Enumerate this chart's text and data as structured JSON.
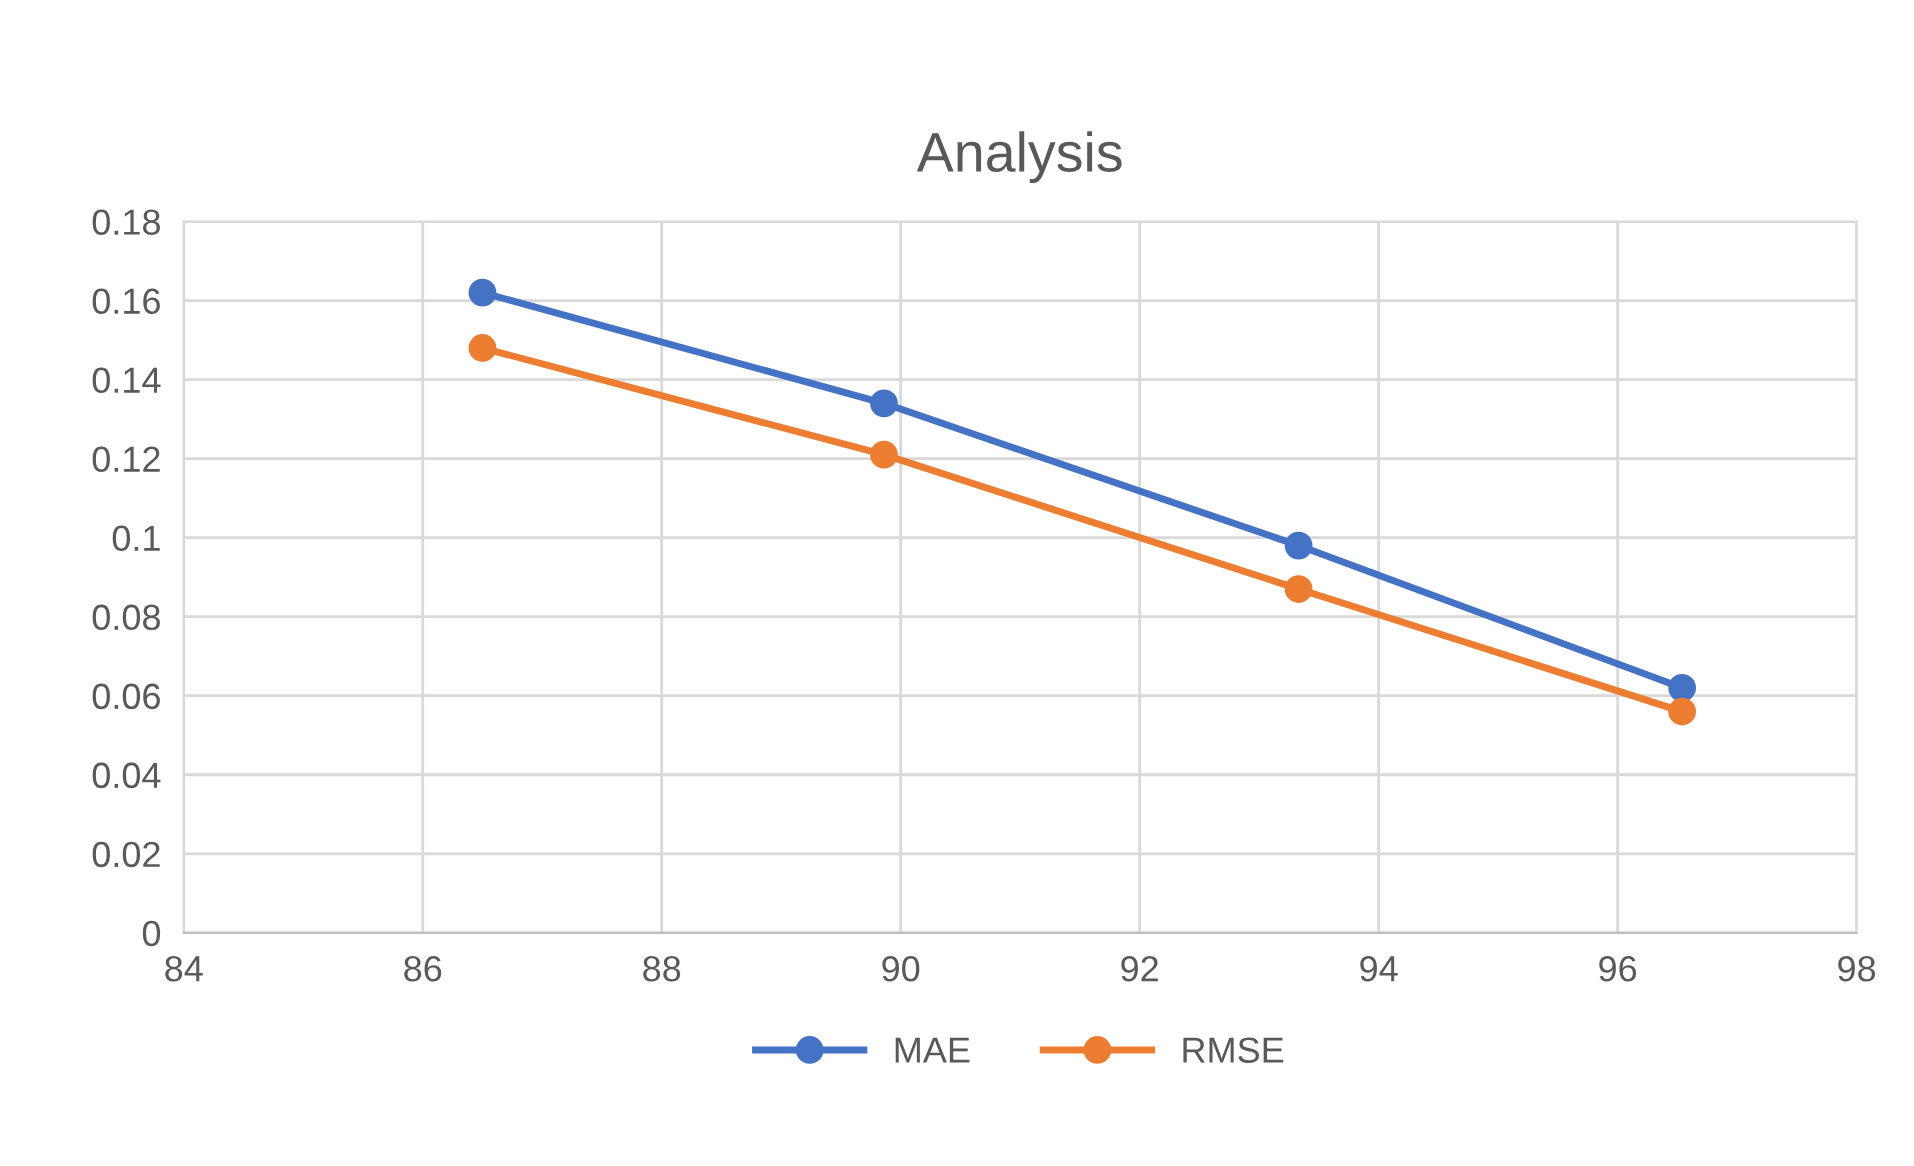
{
  "chart_data": {
    "type": "line",
    "title": "Analysis",
    "series": [
      {
        "name": "MAE",
        "color": "#4472c4",
        "x": [
          86.5,
          89.86,
          93.33,
          96.54
        ],
        "values": [
          0.162,
          0.134,
          0.098,
          0.062
        ]
      },
      {
        "name": "RMSE",
        "color": "#ed7d31",
        "x": [
          86.5,
          89.86,
          93.33,
          96.54
        ],
        "values": [
          0.148,
          0.121,
          0.087,
          0.056
        ]
      }
    ],
    "xlim": [
      84,
      98
    ],
    "xticks": [
      84,
      86,
      88,
      90,
      92,
      94,
      96,
      98
    ],
    "ylim": [
      0,
      0.18
    ],
    "yticks": [
      {
        "value": 0,
        "label": "0"
      },
      {
        "value": 0.02,
        "label": "0.02"
      },
      {
        "value": 0.04,
        "label": "0.04"
      },
      {
        "value": 0.06,
        "label": "0.06"
      },
      {
        "value": 0.08,
        "label": "0.08"
      },
      {
        "value": 0.1,
        "label": "0.1"
      },
      {
        "value": 0.12,
        "label": "0.12"
      },
      {
        "value": 0.14,
        "label": "0.14"
      },
      {
        "value": 0.16,
        "label": "0.16"
      },
      {
        "value": 0.18,
        "label": "0.18"
      }
    ],
    "grid": true,
    "legend": "bottom",
    "marker": "circle",
    "line_style": "solid"
  }
}
